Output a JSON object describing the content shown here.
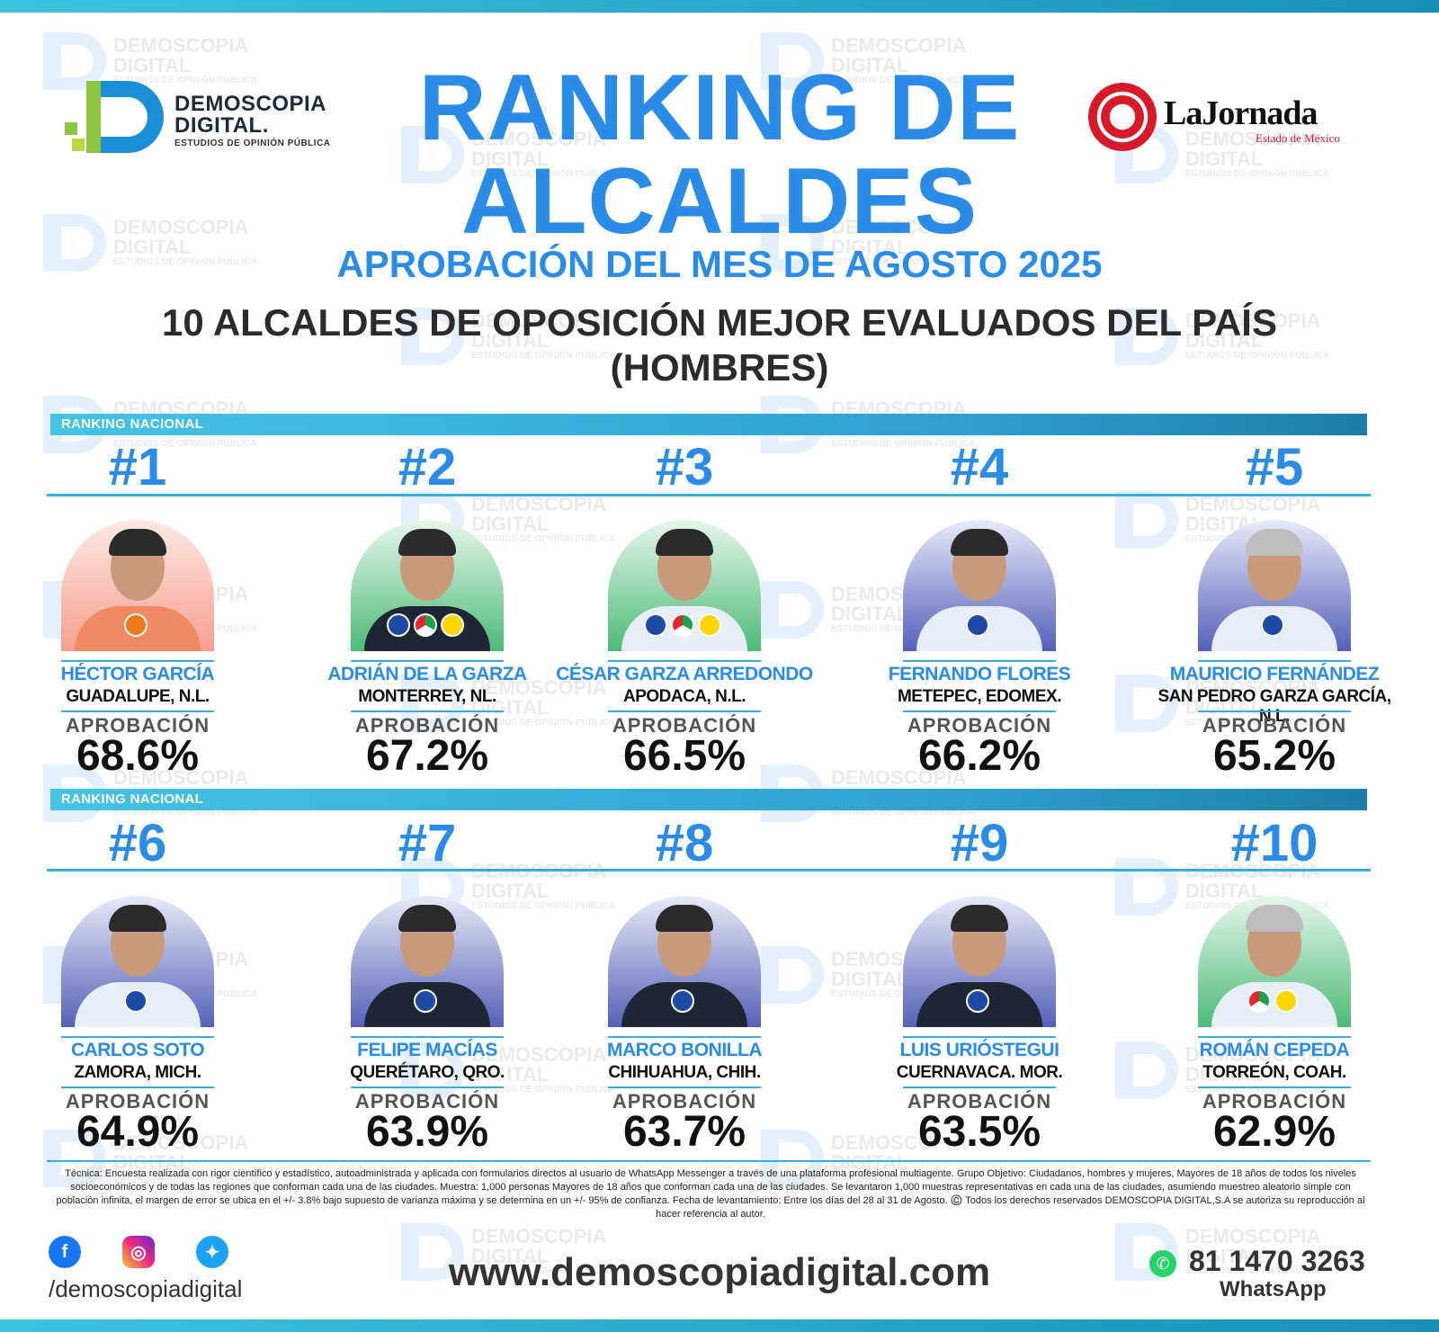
{
  "header": {
    "left_logo": {
      "line1": "DEMOSCOPIA",
      "line2": "DIGITAL.",
      "line3": "ESTUDIOS DE OPINIÓN PÚBLICA"
    },
    "right_logo": {
      "name": "LaJornada",
      "sub": "Estado de México",
      "colors": {
        "red": "#d7192a"
      }
    },
    "title_line1": "RANKING DE",
    "title_line2": "ALCALDES",
    "subtitle": "APROBACIÓN DEL MES DE AGOSTO 2025",
    "heading_line1": "10 ALCALDES DE OPOSICIÓN MEJOR EVALUADOS DEL PAÍS",
    "heading_line2": "(HOMBRES)"
  },
  "watermark": {
    "line1": "DEMOSCOPIA",
    "line2": "DIGITAL",
    "line3": "ESTUDIOS DE OPINIÓN PÚBLICA"
  },
  "section_label": "RANKING NACIONAL",
  "approval_label": "APROBACIÓN",
  "colors": {
    "accent": "#2a8ce6",
    "bar": "#36aee0"
  },
  "mayors": [
    {
      "rank": "#1",
      "name": "HÉCTOR GARCÍA",
      "city": "GUADALUPE, N.L.",
      "approval": "68.6%",
      "parties": [
        "MC"
      ]
    },
    {
      "rank": "#2",
      "name": "ADRIÁN DE LA GARZA",
      "city": "MONTERREY, NL.",
      "approval": "67.2%",
      "parties": [
        "PAN",
        "PRI",
        "PRD"
      ]
    },
    {
      "rank": "#3",
      "name": "CÉSAR GARZA ARREDONDO",
      "city": "APODACA, N.L.",
      "approval": "66.5%",
      "parties": [
        "PAN",
        "PRI",
        "PRD"
      ]
    },
    {
      "rank": "#4",
      "name": "FERNANDO FLORES",
      "city": "METEPEC, EDOMEX.",
      "approval": "66.2%",
      "parties": [
        "PAN"
      ]
    },
    {
      "rank": "#5",
      "name": "MAURICIO FERNÁNDEZ",
      "city": "SAN PEDRO GARZA GARCÍA, N.L.",
      "approval": "65.2%",
      "parties": [
        "PAN"
      ]
    },
    {
      "rank": "#6",
      "name": "CARLOS SOTO",
      "city": "ZAMORA, MICH.",
      "approval": "64.9%",
      "parties": [
        "PAN"
      ]
    },
    {
      "rank": "#7",
      "name": "FELIPE MACÍAS",
      "city": "QUERÉTARO, QRO.",
      "approval": "63.9%",
      "parties": [
        "PAN"
      ]
    },
    {
      "rank": "#8",
      "name": "MARCO BONILLA",
      "city": "CHIHUAHUA, CHIH.",
      "approval": "63.7%",
      "parties": [
        "PAN"
      ]
    },
    {
      "rank": "#9",
      "name": "LUIS URIÓSTEGUI",
      "city": "CUERNAVACA. MOR.",
      "approval": "63.5%",
      "parties": [
        "PAN"
      ]
    },
    {
      "rank": "#10",
      "name": "ROMÁN CEPEDA",
      "city": "TORREÓN, COAH.",
      "approval": "62.9%",
      "parties": [
        "PRI",
        "PRD"
      ]
    }
  ],
  "footer": {
    "tecnica": "Técnica: Encuesta realizada con rigor científico y estadístico, autoadministrada y aplicada con formularios directos al usuario de WhatsApp Messenger a través de una plataforma profesional multiagente. Grupo Objetivo: Ciudadanos, hombres y mujeres, Mayores de 18 años de todos los niveles socioeconómicos y de todas las regiones que conforman cada una de las ciudades. Muestra: 1,000 personas Mayores de 18 años que conforman cada una de las ciudades. Se levantaron 1,000 muestras representativas en cada una de las ciudades, asumiendo muestreo aleatorio simple con población infinita, el margen de error se ubica en el +/- 3.8% bajo supuesto de varianza máxima y se determina en un +/- 95% de confianza. Fecha de levantamiento: Entre los días del 28 al 31 de Agosto. ©️ Todos los derechos reservados DEMOSCOPIA DIGITAL,S.A se autoriza su reproducción al hacer referencia al autor.",
    "social_handle": "/demoscopiadigital",
    "social_icons": [
      "facebook-icon",
      "instagram-icon",
      "twitter-icon"
    ],
    "website": "www.demoscopiadigital.com",
    "whatsapp_number": "81 1470 3263",
    "whatsapp_label": "WhatsApp"
  }
}
